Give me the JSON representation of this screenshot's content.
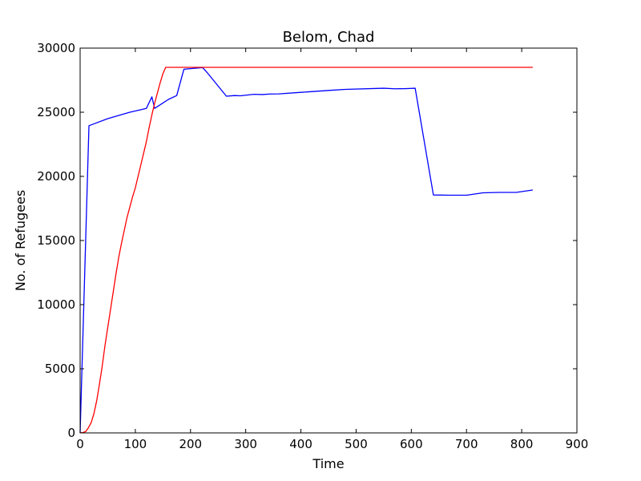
{
  "chart_data": {
    "type": "line",
    "title": "Belom, Chad",
    "xlabel": "Time",
    "ylabel": "No. of Refugees",
    "xlim": [
      0,
      900
    ],
    "ylim": [
      0,
      30000
    ],
    "xticks": [
      0,
      100,
      200,
      300,
      400,
      500,
      600,
      700,
      800,
      900
    ],
    "yticks": [
      0,
      5000,
      10000,
      15000,
      20000,
      25000,
      30000
    ],
    "grid": false,
    "series": [
      {
        "color": "#0000ff",
        "points": [
          [
            0,
            0
          ],
          [
            16,
            23950
          ],
          [
            50,
            24500
          ],
          [
            90,
            25000
          ],
          [
            120,
            25300
          ],
          [
            130,
            26200
          ],
          [
            135,
            25300
          ],
          [
            160,
            26000
          ],
          [
            175,
            26300
          ],
          [
            188,
            28350
          ],
          [
            200,
            28400
          ],
          [
            222,
            28480
          ],
          [
            230,
            28100
          ],
          [
            265,
            26250
          ],
          [
            280,
            26300
          ],
          [
            290,
            26280
          ],
          [
            315,
            26400
          ],
          [
            330,
            26380
          ],
          [
            345,
            26420
          ],
          [
            360,
            26430
          ],
          [
            400,
            26550
          ],
          [
            450,
            26700
          ],
          [
            480,
            26780
          ],
          [
            550,
            26870
          ],
          [
            570,
            26830
          ],
          [
            590,
            26840
          ],
          [
            607,
            26870
          ],
          [
            640,
            18550
          ],
          [
            670,
            18530
          ],
          [
            700,
            18530
          ],
          [
            730,
            18720
          ],
          [
            760,
            18750
          ],
          [
            790,
            18750
          ],
          [
            820,
            18940
          ]
        ]
      },
      {
        "color": "#ff0000",
        "points": [
          [
            0,
            0
          ],
          [
            5,
            30
          ],
          [
            10,
            100
          ],
          [
            15,
            400
          ],
          [
            20,
            800
          ],
          [
            25,
            1500
          ],
          [
            30,
            2500
          ],
          [
            35,
            3800
          ],
          [
            40,
            5200
          ],
          [
            45,
            6800
          ],
          [
            50,
            8200
          ],
          [
            55,
            9600
          ],
          [
            60,
            11000
          ],
          [
            65,
            12400
          ],
          [
            70,
            13700
          ],
          [
            75,
            14800
          ],
          [
            80,
            15800
          ],
          [
            85,
            16800
          ],
          [
            90,
            17600
          ],
          [
            95,
            18400
          ],
          [
            100,
            19100
          ],
          [
            105,
            20000
          ],
          [
            110,
            20900
          ],
          [
            115,
            21800
          ],
          [
            120,
            22700
          ],
          [
            125,
            23800
          ],
          [
            130,
            24800
          ],
          [
            135,
            25700
          ],
          [
            140,
            26500
          ],
          [
            145,
            27300
          ],
          [
            150,
            28000
          ],
          [
            155,
            28500
          ],
          [
            820,
            28500
          ]
        ]
      }
    ]
  }
}
